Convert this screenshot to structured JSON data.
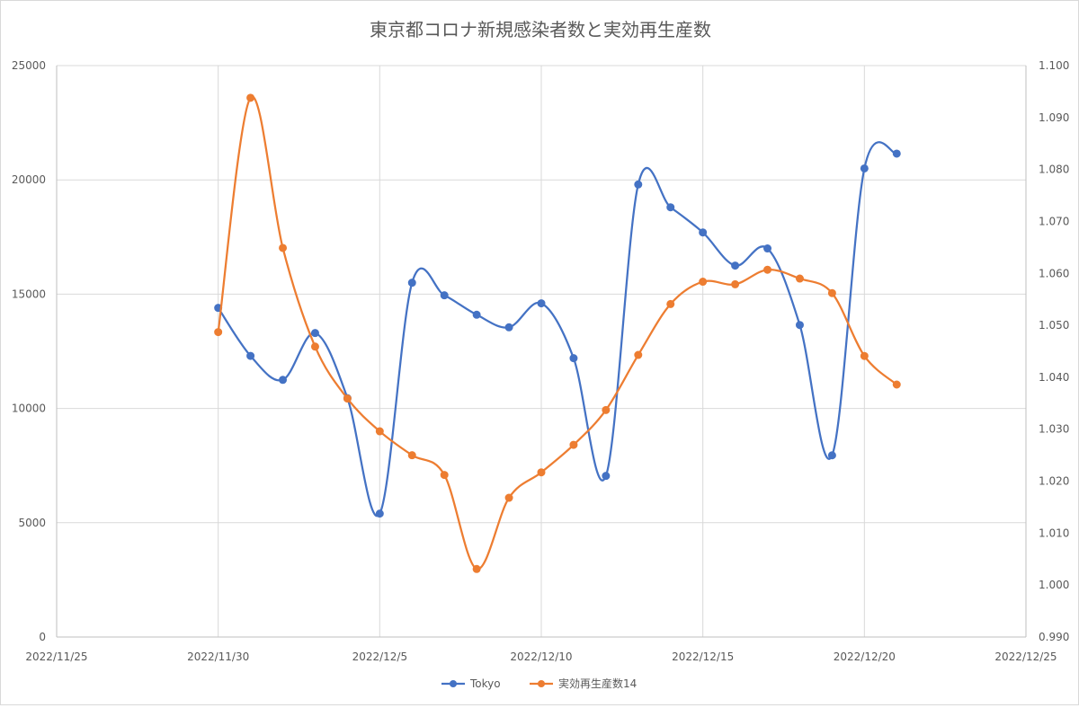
{
  "chart_data": {
    "type": "line",
    "title": "東京都コロナ新規感染者数と実効再生産数",
    "x_axis": {
      "type": "date",
      "range": [
        "2022-11-25",
        "2022-12-25"
      ],
      "tick_labels": [
        "2022/11/25",
        "2022/11/30",
        "2022/12/5",
        "2022/12/10",
        "2022/12/15",
        "2022/12/20",
        "2022/12/25"
      ],
      "tick_dates": [
        "2022-11-25",
        "2022-11-30",
        "2022-12-05",
        "2022-12-10",
        "2022-12-15",
        "2022-12-20",
        "2022-12-25"
      ],
      "grid": true
    },
    "y_axis_left": {
      "range": [
        0,
        25000
      ],
      "tick_labels": [
        "0",
        "5000",
        "10000",
        "15000",
        "20000",
        "25000"
      ],
      "grid": true
    },
    "y_axis_right": {
      "range": [
        0.99,
        1.1
      ],
      "tick_labels": [
        "0.990",
        "1.000",
        "1.010",
        "1.020",
        "1.030",
        "1.040",
        "1.050",
        "1.060",
        "1.070",
        "1.080",
        "1.090",
        "1.100"
      ]
    },
    "legend_position": "bottom",
    "series": [
      {
        "name": "Tokyo",
        "axis": "left",
        "color": "#4472c4",
        "points": [
          [
            "2022-11-30",
            14400
          ],
          [
            "2022-12-01",
            12300
          ],
          [
            "2022-12-02",
            11250
          ],
          [
            "2022-12-03",
            13300
          ],
          [
            "2022-12-04",
            10450
          ],
          [
            "2022-12-05",
            5400
          ],
          [
            "2022-12-06",
            15500
          ],
          [
            "2022-12-07",
            14950
          ],
          [
            "2022-12-08",
            14100
          ],
          [
            "2022-12-09",
            13550
          ],
          [
            "2022-12-10",
            14600
          ],
          [
            "2022-12-11",
            12200
          ],
          [
            "2022-12-12",
            7050
          ],
          [
            "2022-12-13",
            19800
          ],
          [
            "2022-12-14",
            18800
          ],
          [
            "2022-12-15",
            17700
          ],
          [
            "2022-12-16",
            16250
          ],
          [
            "2022-12-17",
            17000
          ],
          [
            "2022-12-18",
            13650
          ],
          [
            "2022-12-19",
            7950
          ],
          [
            "2022-12-20",
            20500
          ],
          [
            "2022-12-21",
            21150
          ]
        ]
      },
      {
        "name": "実効再生産数14",
        "axis": "right",
        "color": "#ed7d31",
        "points": [
          [
            "2022-11-30",
            1.0487
          ],
          [
            "2022-12-01",
            1.0938
          ],
          [
            "2022-12-02",
            1.0649
          ],
          [
            "2022-12-03",
            1.0459
          ],
          [
            "2022-12-04",
            1.0359
          ],
          [
            "2022-12-05",
            1.0296
          ],
          [
            "2022-12-06",
            1.025
          ],
          [
            "2022-12-07",
            1.0212
          ],
          [
            "2022-12-08",
            1.0031
          ],
          [
            "2022-12-09",
            1.0168
          ],
          [
            "2022-12-10",
            1.0217
          ],
          [
            "2022-12-11",
            1.027
          ],
          [
            "2022-12-12",
            1.0337
          ],
          [
            "2022-12-13",
            1.0443
          ],
          [
            "2022-12-14",
            1.0541
          ],
          [
            "2022-12-15",
            1.0584
          ],
          [
            "2022-12-16",
            1.0579
          ],
          [
            "2022-12-17",
            1.0607
          ],
          [
            "2022-12-18",
            1.059
          ],
          [
            "2022-12-19",
            1.0562
          ],
          [
            "2022-12-20",
            1.0441
          ],
          [
            "2022-12-21",
            1.0386
          ]
        ]
      }
    ]
  }
}
